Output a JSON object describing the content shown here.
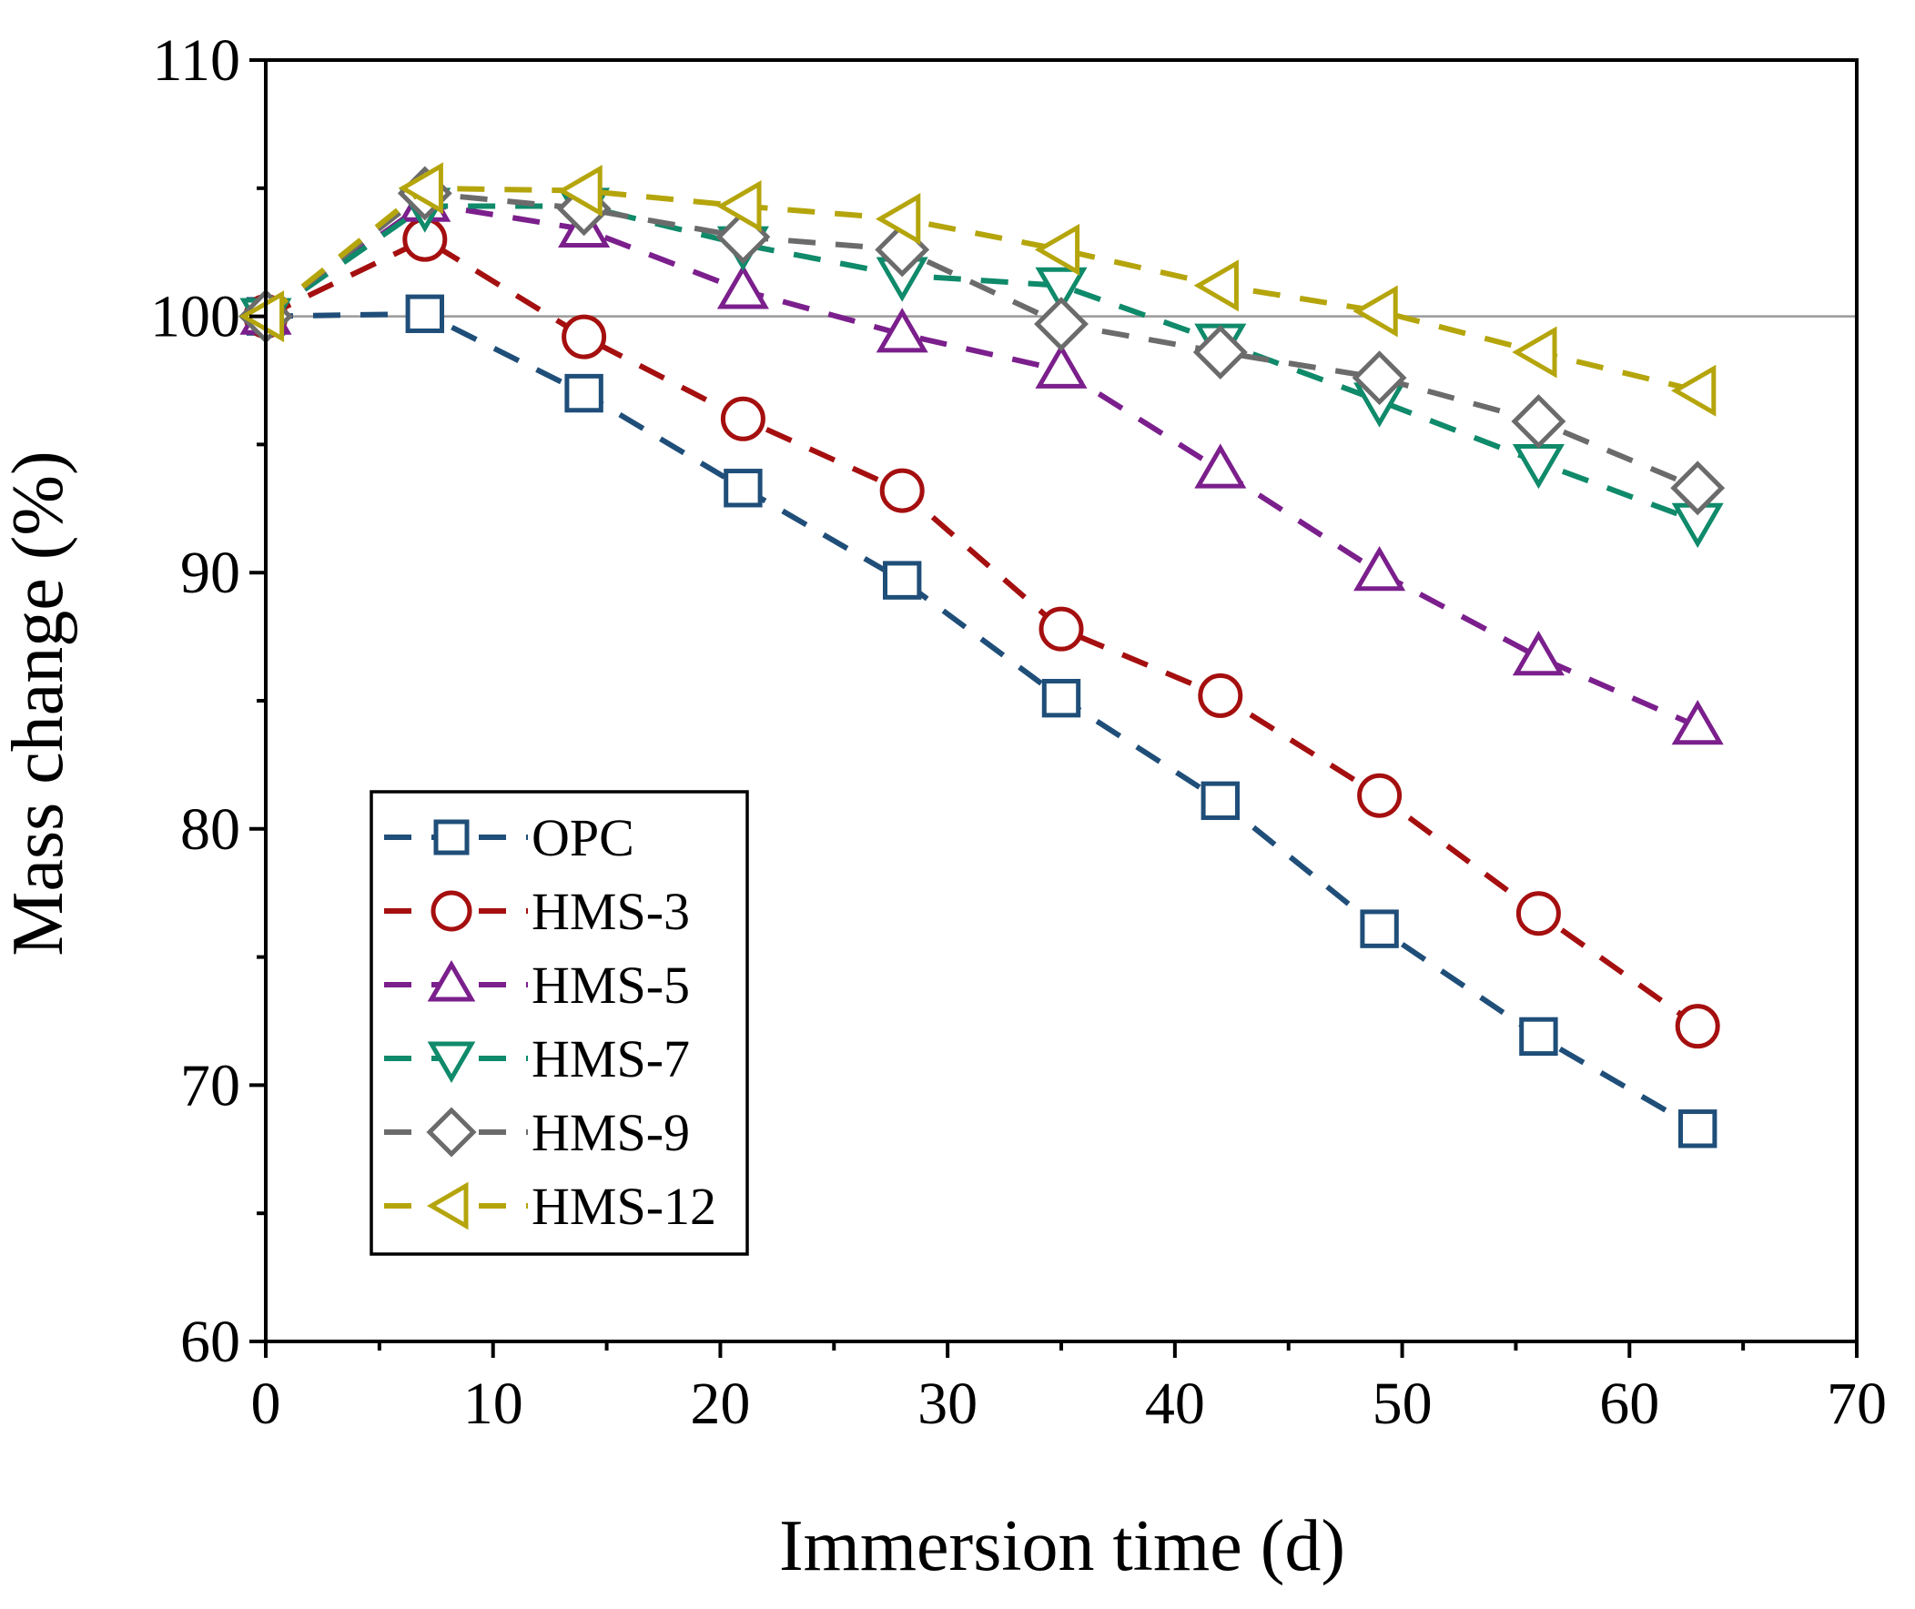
{
  "chart_data": {
    "type": "line",
    "xlabel": "Immersion time (d)",
    "ylabel": "Mass change (%)",
    "xlim": [
      0,
      70
    ],
    "ylim": [
      60,
      110
    ],
    "x_ticks": [
      0,
      10,
      20,
      30,
      40,
      50,
      60,
      70
    ],
    "y_ticks": [
      60,
      70,
      80,
      90,
      100,
      110
    ],
    "x_tick_labels": [
      "0",
      "10",
      "20",
      "30",
      "40",
      "50",
      "60",
      "70"
    ],
    "y_tick_labels": [
      "60",
      "70",
      "80",
      "90",
      "100",
      "110"
    ],
    "reference_line": 100,
    "grid": false,
    "legend_position": "lower-left",
    "x": [
      0,
      7,
      14,
      21,
      28,
      35,
      42,
      49,
      56,
      63
    ],
    "series": [
      {
        "name": "OPC",
        "marker": "square",
        "color": "#1f4e79",
        "values": [
          100.0,
          100.1,
          97.0,
          93.3,
          89.7,
          85.1,
          81.1,
          76.1,
          71.9,
          68.3
        ]
      },
      {
        "name": "HMS-3",
        "marker": "circle",
        "color": "#a50f0f",
        "values": [
          100.0,
          103.0,
          99.2,
          96.0,
          93.2,
          87.8,
          85.2,
          81.3,
          76.7,
          72.3
        ]
      },
      {
        "name": "HMS-5",
        "marker": "triangle-up",
        "color": "#7b1f8c",
        "values": [
          100.0,
          104.4,
          103.4,
          101.0,
          99.3,
          97.9,
          94.0,
          90.0,
          86.7,
          84.0
        ]
      },
      {
        "name": "HMS-7",
        "marker": "triangle-down",
        "color": "#0f8a6a",
        "values": [
          100.0,
          104.3,
          104.3,
          102.8,
          101.6,
          101.2,
          99.0,
          96.7,
          94.3,
          92.0
        ]
      },
      {
        "name": "HMS-9",
        "marker": "diamond",
        "color": "#6b6b6b",
        "values": [
          100.0,
          104.8,
          104.2,
          103.1,
          102.6,
          99.7,
          98.6,
          97.6,
          95.9,
          93.3
        ]
      },
      {
        "name": "HMS-12",
        "marker": "triangle-left",
        "color": "#b5a50c",
        "values": [
          100.0,
          105.0,
          104.9,
          104.3,
          103.8,
          102.6,
          101.2,
          100.2,
          98.6,
          97.1
        ]
      }
    ]
  }
}
